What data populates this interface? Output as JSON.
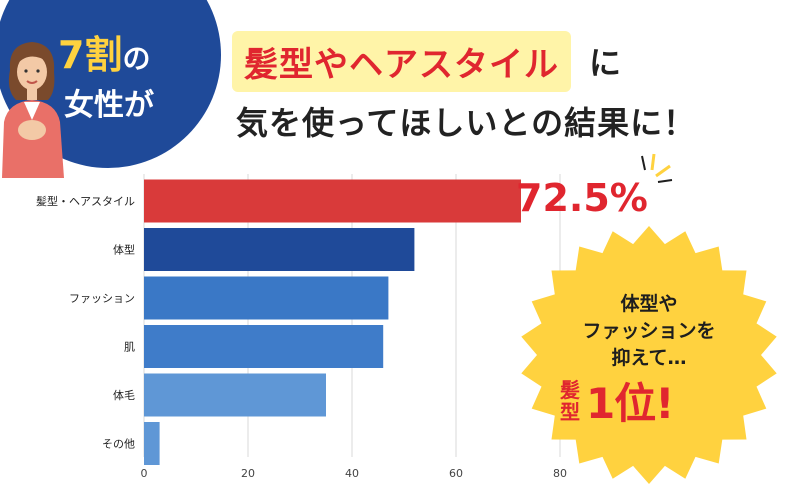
{
  "badge": {
    "number": "7割",
    "line1_rest": "の",
    "line2": "女性が"
  },
  "headline": {
    "highlight": "髪型やヘアスタイル",
    "after_highlight": "に",
    "line2": "気を使ってほしいとの結果に！"
  },
  "top_value_label": "72.5%",
  "callout": {
    "line1": "体型や",
    "line2": "ファッションを",
    "line3": "抑えて…",
    "rank_prefix_top": "髪",
    "rank_prefix_bottom": "型",
    "rank": "1位!"
  },
  "colors": {
    "red": "#d93a3a",
    "dark_blue": "#1f4a99",
    "mid_blue": "#3a78c6",
    "light_blue": "#5f97d6",
    "highlight": "#fff4a8",
    "burst": "#ffd23f"
  },
  "chart_data": {
    "type": "bar",
    "orientation": "horizontal",
    "categories": [
      "髪型・ヘアスタイル",
      "体型",
      "ファッション",
      "肌",
      "体毛",
      "その他"
    ],
    "values": [
      72.5,
      52,
      47,
      46,
      35,
      3
    ],
    "bar_colors": [
      "#d93a3a",
      "#1f4a99",
      "#3a78c6",
      "#3f7cc9",
      "#5f97d6",
      "#5f97d6"
    ],
    "xticks": [
      "0",
      "20",
      "40",
      "60",
      "80"
    ],
    "xlim": [
      0,
      80
    ],
    "grid": true,
    "title": "",
    "xlabel": "",
    "ylabel": ""
  }
}
